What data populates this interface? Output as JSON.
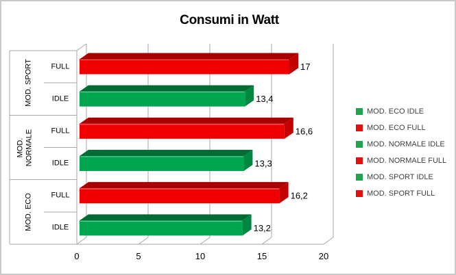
{
  "chart_data": {
    "type": "bar",
    "orientation": "horizontal",
    "style": "3d",
    "title": "Consumi in Watt",
    "value_axis": {
      "ticks": [
        0,
        5,
        10,
        15,
        20
      ],
      "range": [
        0,
        20
      ],
      "grid": true
    },
    "category_axis": {
      "groups_top_to_bottom": [
        {
          "label": "MOD. SPORT",
          "subs": [
            "FULL",
            "IDLE"
          ]
        },
        {
          "label": "MOD. NORMALE",
          "subs": [
            "FULL",
            "IDLE"
          ]
        },
        {
          "label": "MOD. ECO",
          "subs": [
            "FULL",
            "IDLE"
          ]
        }
      ]
    },
    "bars_top_to_bottom": [
      {
        "name": "MOD. SPORT FULL",
        "value": 17,
        "label": "17",
        "color_key": "red"
      },
      {
        "name": "MOD. SPORT IDLE",
        "value": 13.4,
        "label": "13,4",
        "color_key": "green"
      },
      {
        "name": "MOD. NORMALE FULL",
        "value": 16.6,
        "label": "16,6",
        "color_key": "red"
      },
      {
        "name": "MOD. NORMALE IDLE",
        "value": 13.3,
        "label": "13,3",
        "color_key": "green"
      },
      {
        "name": "MOD. ECO FULL",
        "value": 16.2,
        "label": "16,2",
        "color_key": "red"
      },
      {
        "name": "MOD. ECO IDLE",
        "value": 13.2,
        "label": "13,2",
        "color_key": "green"
      }
    ],
    "legend": {
      "position": "right",
      "items": [
        {
          "label": "MOD. ECO IDLE",
          "color_key": "green"
        },
        {
          "label": "MOD. ECO FULL",
          "color_key": "red"
        },
        {
          "label": "MOD. NORMALE IDLE",
          "color_key": "green"
        },
        {
          "label": "MOD. NORMALE FULL",
          "color_key": "red"
        },
        {
          "label": "MOD. SPORT IDLE",
          "color_key": "green"
        },
        {
          "label": "MOD. SPORT FULL",
          "color_key": "red"
        }
      ]
    },
    "colors": {
      "green": {
        "front": "#00A550",
        "top": "#006B33",
        "side": "#008740",
        "legend": "#21A44D"
      },
      "red": {
        "front": "#EE0000",
        "top": "#A80000",
        "side": "#C40000",
        "legend": "#E41111"
      },
      "line": "#A6A6A6",
      "text": "#000000",
      "legend_text": "#3F3F3F",
      "frame_border": "#C9C9C9"
    }
  }
}
